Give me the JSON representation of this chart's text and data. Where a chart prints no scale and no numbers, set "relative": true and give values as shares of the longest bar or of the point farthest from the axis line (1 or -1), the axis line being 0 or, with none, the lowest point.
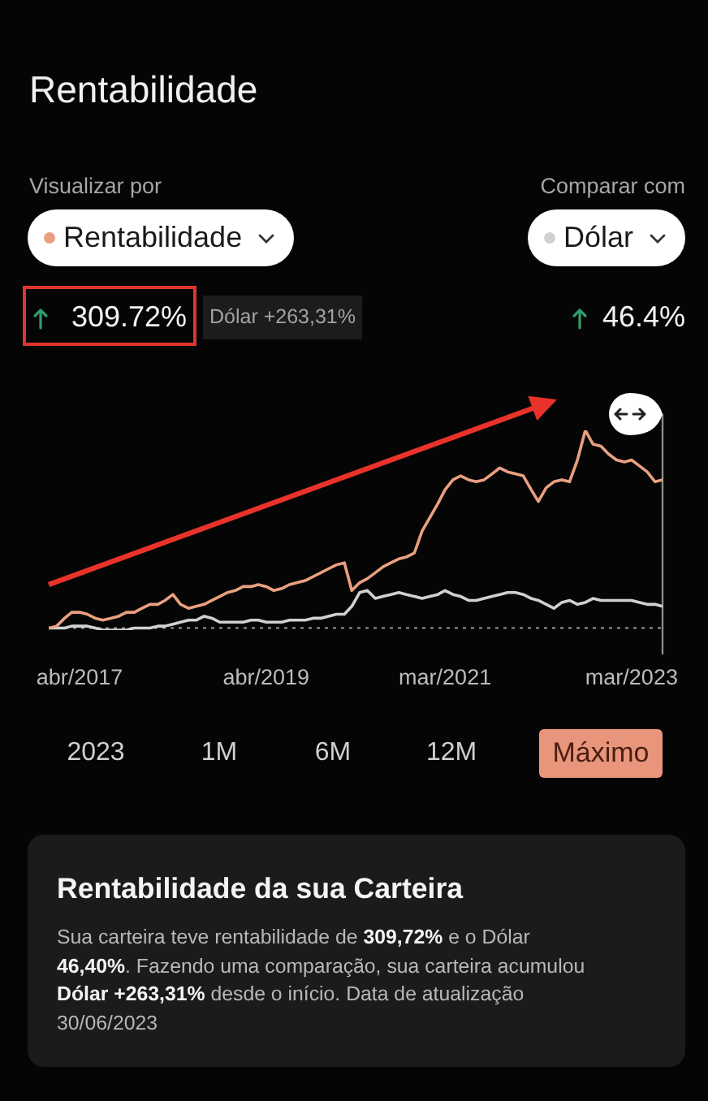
{
  "chart_data": {
    "type": "line",
    "title": "Rentabilidade",
    "x": [
      "2016-12",
      "2017-01",
      "2017-02",
      "2017-03",
      "2017-04",
      "2017-05",
      "2017-06",
      "2017-07",
      "2017-08",
      "2017-09",
      "2017-10",
      "2017-11",
      "2017-12",
      "2018-01",
      "2018-02",
      "2018-03",
      "2018-04",
      "2018-05",
      "2018-06",
      "2018-07",
      "2018-08",
      "2018-09",
      "2018-10",
      "2018-11",
      "2018-12",
      "2019-01",
      "2019-02",
      "2019-03",
      "2019-04",
      "2019-05",
      "2019-06",
      "2019-07",
      "2019-08",
      "2019-09",
      "2019-10",
      "2019-11",
      "2019-12",
      "2020-01",
      "2020-02",
      "2020-03",
      "2020-04",
      "2020-05",
      "2020-06",
      "2020-07",
      "2020-08",
      "2020-09",
      "2020-10",
      "2020-11",
      "2020-12",
      "2021-01",
      "2021-02",
      "2021-03",
      "2021-04",
      "2021-05",
      "2021-06",
      "2021-07",
      "2021-08",
      "2021-09",
      "2021-10",
      "2021-11",
      "2021-12",
      "2022-01",
      "2022-02",
      "2022-03",
      "2022-04",
      "2022-05",
      "2022-06",
      "2022-07",
      "2022-08",
      "2022-09",
      "2022-10",
      "2022-11",
      "2022-12",
      "2023-01",
      "2023-02",
      "2023-03",
      "2023-04",
      "2023-05",
      "2023-06",
      "2023-06-30"
    ],
    "series": [
      {
        "name": "Rentabilidade",
        "color": "#e9a080",
        "values": [
          0,
          0.01,
          0.05,
          0.08,
          0.08,
          0.07,
          0.05,
          0.04,
          0.05,
          0.06,
          0.08,
          0.08,
          0.1,
          0.12,
          0.12,
          0.14,
          0.17,
          0.12,
          0.1,
          0.11,
          0.12,
          0.14,
          0.16,
          0.18,
          0.19,
          0.21,
          0.21,
          0.22,
          0.21,
          0.19,
          0.2,
          0.22,
          0.23,
          0.24,
          0.26,
          0.28,
          0.3,
          0.32,
          0.33,
          0.19,
          0.23,
          0.25,
          0.28,
          0.31,
          0.33,
          0.35,
          0.36,
          0.38,
          0.49,
          0.56,
          0.63,
          0.7,
          0.75,
          0.77,
          0.75,
          0.74,
          0.75,
          0.78,
          0.81,
          0.79,
          0.78,
          0.77,
          0.7,
          0.64,
          0.71,
          0.74,
          0.75,
          0.74,
          0.85,
          1,
          0.93,
          0.92,
          0.88,
          0.85,
          0.84,
          0.85,
          0.82,
          0.79,
          0.74,
          0.75
        ]
      },
      {
        "name": "Dólar",
        "color": "#d0d0d0",
        "values": [
          0,
          0,
          0,
          0.01,
          0.01,
          0.01,
          0,
          -0.01,
          -0.01,
          -0.01,
          -0.01,
          0,
          0,
          0,
          0.01,
          0.01,
          0.02,
          0.03,
          0.04,
          0.04,
          0.06,
          0.05,
          0.03,
          0.03,
          0.03,
          0.03,
          0.04,
          0.04,
          0.03,
          0.03,
          0.03,
          0.04,
          0.04,
          0.04,
          0.05,
          0.05,
          0.06,
          0.07,
          0.07,
          0.11,
          0.18,
          0.19,
          0.15,
          0.16,
          0.17,
          0.18,
          0.17,
          0.16,
          0.15,
          0.16,
          0.17,
          0.19,
          0.17,
          0.16,
          0.14,
          0.14,
          0.15,
          0.16,
          0.17,
          0.18,
          0.18,
          0.17,
          0.15,
          0.14,
          0.12,
          0.1,
          0.13,
          0.14,
          0.12,
          0.13,
          0.15,
          0.14,
          0.14,
          0.14,
          0.14,
          0.14,
          0.13,
          0.12,
          0.12,
          0.11
        ]
      }
    ],
    "xlim": [
      "2016-12",
      "2023-06-30"
    ],
    "xticks": [
      {
        "value": "2017-04",
        "label": "abr/2017"
      },
      {
        "value": "2019-04",
        "label": "abr/2019"
      },
      {
        "value": "2021-03",
        "label": "mar/2021"
      },
      {
        "value": "2023-03",
        "label": "mar/2023"
      }
    ],
    "relative": true,
    "tick_labels": "x",
    "legend": "top",
    "ref_lines": [
      {
        "axis": "y",
        "value": 0,
        "line_style": "dotted",
        "color": "#9a9a9a"
      },
      {
        "axis": "x",
        "value": "2023-06-30",
        "color": "#8c8c8c"
      }
    ],
    "annotations": [
      "Visualizar por",
      "Comparar com",
      "309.72%",
      "Dólar +263,31%",
      "46.4%",
      "2023",
      "1M",
      "6M",
      "12M",
      "Máximo",
      "Rentabilidade da sua Carteira",
      "Sua carteira teve rentabilidade de ",
      "309,72%",
      " e o Dólar",
      "46,40%",
      ". Fazendo uma comparação, sua carteira acumulou",
      "Dólar +263,31%",
      " desde o início. Data de atualização",
      "30/06/2023"
    ]
  }
}
